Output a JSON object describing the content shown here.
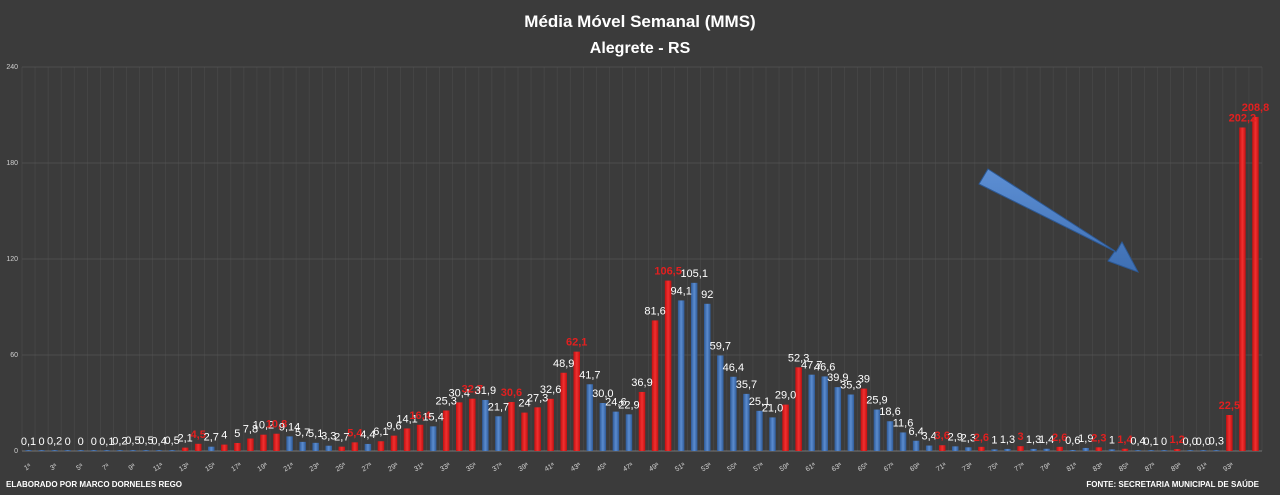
{
  "chart_data": {
    "type": "bar",
    "title": "Média Móvel Semanal (MMS)",
    "subtitle": "Alegrete - RS",
    "ylim": [
      0,
      240
    ],
    "yticks": [
      0,
      60,
      120,
      180,
      240
    ],
    "grid": true,
    "legend": "none",
    "categories": [
      "1ª",
      "2ª",
      "3ª",
      "4ª",
      "5ª",
      "6ª",
      "7ª",
      "8ª",
      "9ª",
      "10ª",
      "11ª",
      "12ª",
      "13ª",
      "14ª",
      "15ª",
      "16ª",
      "17ª",
      "18ª",
      "19ª",
      "20ª",
      "21ª",
      "22ª",
      "23ª",
      "24ª",
      "25ª",
      "26ª",
      "27ª",
      "28ª",
      "29ª",
      "30ª",
      "31ª",
      "32ª",
      "33ª",
      "34ª",
      "35ª",
      "36ª",
      "37ª",
      "38ª",
      "39ª",
      "40ª",
      "41ª",
      "42ª",
      "43ª",
      "44ª",
      "45ª",
      "46ª",
      "47ª",
      "48ª",
      "49ª",
      "50ª",
      "51ª",
      "52ª",
      "53ª",
      "54ª",
      "55ª",
      "56ª",
      "57ª",
      "58ª",
      "59ª",
      "60ª",
      "61ª",
      "62ª",
      "63ª",
      "64ª",
      "65ª",
      "66ª",
      "67ª",
      "68ª",
      "69ª",
      "70ª",
      "71ª",
      "72ª",
      "73ª",
      "74ª",
      "75ª",
      "76ª",
      "77ª",
      "78ª",
      "79ª",
      "80ª",
      "81ª",
      "82ª",
      "83ª",
      "84ª",
      "85ª",
      "86ª",
      "87ª",
      "88ª",
      "89ª",
      "90ª",
      "91ª",
      "92ª",
      "93ª",
      "94ª",
      "95ª"
    ],
    "category_labels_shown": [
      "1ª",
      "3ª",
      "5ª",
      "7ª",
      "9ª",
      "11ª",
      "13ª",
      "15ª",
      "17ª",
      "19ª",
      "21ª",
      "23ª",
      "25ª",
      "27ª",
      "29ª",
      "31ª",
      "33ª",
      "35ª",
      "37ª",
      "39ª",
      "41ª",
      "43ª",
      "45ª",
      "47ª",
      "49ª",
      "51ª",
      "53ª",
      "55ª",
      "57ª",
      "59ª",
      "61ª",
      "63ª",
      "65ª",
      "67ª",
      "69ª",
      "71ª",
      "73ª",
      "75ª",
      "77ª",
      "79ª",
      "81ª",
      "83ª",
      "85ª",
      "87ª",
      "89ª",
      "91ª",
      "93ª"
    ],
    "values": [
      0.1,
      0,
      0.2,
      0,
      0,
      0,
      0.1,
      0.2,
      0.5,
      0.5,
      0.4,
      0.5,
      2.1,
      4.5,
      2.7,
      4,
      5,
      7.8,
      10.2,
      10.8,
      9.14,
      5.7,
      5.1,
      3.3,
      2.7,
      5.4,
      4.4,
      6.1,
      9.6,
      14.1,
      16.4,
      15.4,
      25.3,
      30.4,
      32.7,
      31.9,
      21.7,
      30.6,
      24,
      27.3,
      32.6,
      48.9,
      62.1,
      41.7,
      30.0,
      24.6,
      22.9,
      36.9,
      81.6,
      106.5,
      94.1,
      105.1,
      92,
      59.7,
      46.4,
      35.7,
      25.1,
      21.0,
      29.0,
      52.3,
      47.7,
      46.6,
      39.9,
      35.3,
      39,
      25.9,
      18.6,
      11.6,
      6.4,
      3.4,
      3.6,
      2.9,
      2.3,
      2.6,
      1,
      1.3,
      3,
      1.3,
      1.4,
      2.6,
      0.6,
      1.9,
      2.3,
      1,
      1.4,
      0.4,
      0.1,
      0,
      1.2,
      0.0,
      0.0,
      0.3,
      22.5,
      202.2,
      208.8
    ],
    "labels": [
      "0,1",
      "0",
      "0,2",
      "0",
      "0",
      "0",
      "0,1",
      "0,2",
      "0,5",
      "0,5",
      "0,4",
      "0,5",
      "2,1",
      "4,5",
      "2,7",
      "4",
      "5",
      "7,8",
      "10,2",
      "10,8",
      "9,14",
      "5,7",
      "5,1",
      "3,3",
      "2,7",
      "5,4",
      "4,4",
      "6,1",
      "9,6",
      "14,1",
      "16,4",
      "15,4",
      "25,3",
      "30,4",
      "32,7",
      "31,9",
      "21,7",
      "30,6",
      "24",
      "27,3",
      "32,6",
      "48,9",
      "62,1",
      "41,7",
      "30,0",
      "24,6",
      "22,9",
      "36,9",
      "81,6",
      "106,5",
      "94,1",
      "105,1",
      "92",
      "59,7",
      "46,4",
      "35,7",
      "25,1",
      "21,0",
      "29,0",
      "52,3",
      "47,7",
      "46,6",
      "39,9",
      "35,3",
      "39",
      "25,9",
      "18,6",
      "11,6",
      "6,4",
      "3,4",
      "3,6",
      "2,9",
      "2,3",
      "2,6",
      "1",
      "1,3",
      "3",
      "1,3",
      "1,4",
      "2,6",
      "0,6",
      "1,9",
      "2,3",
      "1",
      "1,4",
      "0,4",
      "0,1",
      "0",
      "1,2",
      "0,0",
      "0,0",
      "0,3",
      "22,5",
      "202,2",
      "208,8"
    ],
    "colors": [
      "blue",
      "blue",
      "blue",
      "blue",
      "blue",
      "blue",
      "blue",
      "blue",
      "blue",
      "blue",
      "blue",
      "blue",
      "red",
      "red",
      "blue",
      "red",
      "red",
      "red",
      "red",
      "red",
      "blue",
      "blue",
      "blue",
      "blue",
      "red",
      "red",
      "blue",
      "red",
      "red",
      "red",
      "red",
      "blue",
      "red",
      "red",
      "red",
      "blue",
      "blue",
      "red",
      "red",
      "red",
      "red",
      "red",
      "red",
      "blue",
      "blue",
      "blue",
      "blue",
      "red",
      "red",
      "red",
      "blue",
      "blue",
      "blue",
      "blue",
      "blue",
      "blue",
      "blue",
      "blue",
      "red",
      "red",
      "blue",
      "blue",
      "blue",
      "blue",
      "red",
      "blue",
      "blue",
      "blue",
      "blue",
      "blue",
      "red",
      "blue",
      "blue",
      "red",
      "blue",
      "blue",
      "red",
      "blue",
      "blue",
      "red",
      "blue",
      "blue",
      "red",
      "blue",
      "red",
      "blue",
      "blue",
      "blue",
      "red",
      "blue",
      "blue",
      "blue",
      "red",
      "red",
      "red"
    ],
    "label_colors": [
      "white",
      "white",
      "white",
      "white",
      "white",
      "white",
      "white",
      "white",
      "white",
      "white",
      "white",
      "white",
      "white",
      "red",
      "white",
      "white",
      "white",
      "white",
      "white",
      "red",
      "white",
      "white",
      "white",
      "white",
      "white",
      "red",
      "white",
      "white",
      "white",
      "white",
      "red",
      "white",
      "white",
      "white",
      "red",
      "white",
      "white",
      "red",
      "white",
      "white",
      "white",
      "white",
      "red",
      "white",
      "white",
      "white",
      "white",
      "white",
      "white",
      "red",
      "white",
      "white",
      "white",
      "white",
      "white",
      "white",
      "white",
      "white",
      "white",
      "white",
      "white",
      "white",
      "white",
      "white",
      "white",
      "white",
      "white",
      "white",
      "white",
      "white",
      "red",
      "white",
      "white",
      "red",
      "white",
      "white",
      "red",
      "white",
      "white",
      "red",
      "white",
      "white",
      "red",
      "white",
      "red",
      "white",
      "white",
      "white",
      "red",
      "white",
      "white",
      "white",
      "red",
      "red",
      "red"
    ],
    "palette": {
      "blue": "#4a78b8",
      "red": "#e31f1f",
      "white": "#ffffff"
    },
    "footer_left": "ELABORADO POR MARCO DORNELES REGO",
    "footer_right": "FONTE: SECRETARIA MUNICIPAL DE SAÚDE",
    "annotation": "arrow"
  }
}
